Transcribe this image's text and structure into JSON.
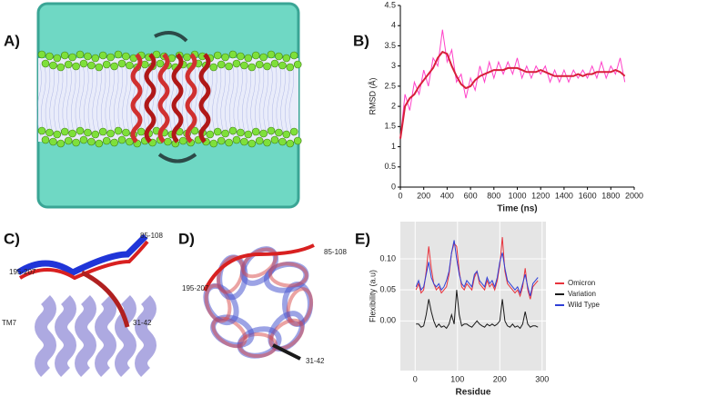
{
  "panel_labels": [
    "A)",
    "B)",
    "C)",
    "D)",
    "E)"
  ],
  "panel_c_labels": [
    "85-108",
    "195-207",
    "TM7",
    "31-42"
  ],
  "panel_d_labels": [
    "85-108",
    "195-207",
    "31-42"
  ],
  "chart_data": [
    {
      "type": "line",
      "xlabel": "Time (ns)",
      "ylabel": "RMSD (Å)",
      "xlim": [
        0,
        2000
      ],
      "xticks": [
        0,
        200,
        400,
        600,
        800,
        1000,
        1200,
        1400,
        1600,
        1800,
        2000
      ],
      "ylim": [
        0,
        4.5
      ],
      "yticks": [
        0,
        0.5,
        1,
        1.5,
        2,
        2.5,
        3,
        3.5,
        4,
        4.5
      ],
      "grid": false,
      "legend": false,
      "background": "#ffffff",
      "x": [
        0,
        40,
        80,
        120,
        160,
        200,
        240,
        280,
        320,
        360,
        400,
        440,
        480,
        520,
        560,
        600,
        640,
        680,
        720,
        760,
        800,
        840,
        880,
        920,
        960,
        1000,
        1040,
        1080,
        1120,
        1160,
        1200,
        1240,
        1280,
        1320,
        1360,
        1400,
        1440,
        1480,
        1520,
        1560,
        1600,
        1640,
        1680,
        1720,
        1760,
        1800,
        1840,
        1880,
        1920
      ],
      "series": [
        {
          "color": "#ff40c8",
          "width": 1,
          "values": [
            1.2,
            2.3,
            1.9,
            2.6,
            2.3,
            2.9,
            2.5,
            3.2,
            3.0,
            3.9,
            3.1,
            3.4,
            2.6,
            2.8,
            2.2,
            2.7,
            2.4,
            3.0,
            2.6,
            3.1,
            2.7,
            3.1,
            2.8,
            3.1,
            2.8,
            3.2,
            2.7,
            3.0,
            2.7,
            3.0,
            2.8,
            3.0,
            2.6,
            2.9,
            2.6,
            2.9,
            2.6,
            2.9,
            2.7,
            2.9,
            2.7,
            3.0,
            2.7,
            3.1,
            2.7,
            3.0,
            2.8,
            3.2,
            2.6
          ]
        },
        {
          "color": "#d81f3a",
          "width": 2,
          "values": [
            1.2,
            2.0,
            2.2,
            2.3,
            2.5,
            2.65,
            2.8,
            2.95,
            3.2,
            3.35,
            3.3,
            3.0,
            2.75,
            2.55,
            2.45,
            2.5,
            2.65,
            2.75,
            2.8,
            2.85,
            2.9,
            2.9,
            2.9,
            2.95,
            2.95,
            2.95,
            2.9,
            2.85,
            2.85,
            2.85,
            2.9,
            2.85,
            2.8,
            2.75,
            2.75,
            2.75,
            2.75,
            2.75,
            2.8,
            2.75,
            2.8,
            2.8,
            2.85,
            2.85,
            2.85,
            2.85,
            2.9,
            2.85,
            2.75
          ]
        }
      ]
    },
    {
      "type": "line",
      "xlabel": "Residue",
      "ylabel": "Flexibility (a.u)",
      "xlim": [
        -35,
        309
      ],
      "xticks": [
        0,
        100,
        200,
        300
      ],
      "ylim": [
        -0.08,
        0.16
      ],
      "yticks": [
        {
          "value": 0,
          "label": "0.00"
        },
        0.05,
        {
          "value": 0.1,
          "label": "0.10"
        }
      ],
      "grid": true,
      "legend": "right",
      "background": "#e5e5e5",
      "x": [
        2,
        8,
        14,
        20,
        26,
        32,
        38,
        44,
        50,
        56,
        62,
        68,
        74,
        80,
        86,
        92,
        98,
        104,
        110,
        116,
        122,
        128,
        134,
        140,
        146,
        152,
        158,
        164,
        170,
        176,
        182,
        188,
        194,
        200,
        206,
        212,
        218,
        224,
        230,
        236,
        242,
        248,
        254,
        260,
        266,
        272,
        278,
        284,
        290
      ],
      "series": [
        {
          "name": "Omicron",
          "color": "#e8333c",
          "width": 1,
          "values": [
            0.05,
            0.06,
            0.045,
            0.05,
            0.08,
            0.12,
            0.085,
            0.06,
            0.05,
            0.055,
            0.045,
            0.05,
            0.055,
            0.075,
            0.11,
            0.125,
            0.12,
            0.08,
            0.055,
            0.05,
            0.06,
            0.055,
            0.05,
            0.07,
            0.08,
            0.06,
            0.055,
            0.05,
            0.065,
            0.055,
            0.06,
            0.05,
            0.065,
            0.09,
            0.135,
            0.08,
            0.06,
            0.055,
            0.05,
            0.045,
            0.05,
            0.04,
            0.055,
            0.085,
            0.05,
            0.035,
            0.055,
            0.06,
            0.065
          ]
        },
        {
          "name": "Variation",
          "color": "#1a1a1a",
          "width": 1,
          "values": [
            -0.005,
            -0.005,
            -0.01,
            -0.008,
            0.01,
            0.035,
            0.015,
            0,
            -0.01,
            -0.005,
            -0.01,
            -0.008,
            -0.012,
            -0.005,
            0.01,
            -0.005,
            0.05,
            0.01,
            -0.008,
            -0.005,
            -0.005,
            -0.008,
            -0.01,
            -0.005,
            0,
            -0.005,
            -0.008,
            -0.01,
            -0.005,
            -0.008,
            -0.005,
            -0.008,
            -0.005,
            0,
            0.035,
            0,
            -0.008,
            -0.01,
            -0.005,
            -0.01,
            -0.008,
            -0.012,
            -0.005,
            0.015,
            -0.005,
            -0.01,
            -0.008,
            -0.008,
            -0.01
          ]
        },
        {
          "name": "Wild Type",
          "color": "#2f3fd6",
          "width": 1,
          "values": [
            0.055,
            0.065,
            0.05,
            0.055,
            0.075,
            0.095,
            0.07,
            0.06,
            0.055,
            0.06,
            0.05,
            0.055,
            0.065,
            0.08,
            0.11,
            0.13,
            0.1,
            0.075,
            0.06,
            0.055,
            0.065,
            0.06,
            0.055,
            0.075,
            0.08,
            0.065,
            0.06,
            0.055,
            0.07,
            0.06,
            0.065,
            0.055,
            0.07,
            0.095,
            0.11,
            0.085,
            0.065,
            0.06,
            0.055,
            0.05,
            0.055,
            0.045,
            0.06,
            0.075,
            0.055,
            0.04,
            0.06,
            0.065,
            0.07
          ]
        }
      ]
    }
  ]
}
